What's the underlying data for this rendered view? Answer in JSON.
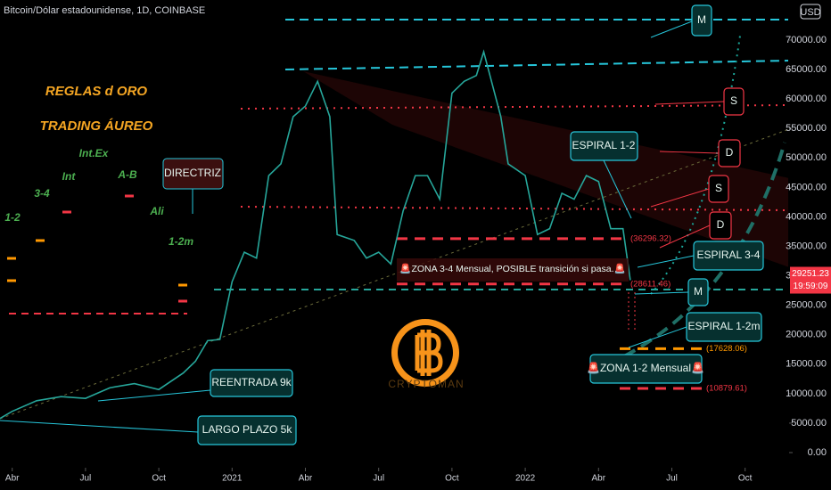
{
  "chart_data": {
    "type": "line",
    "title": "Bitcoin/Dólar estadounidense, 1D, COINBASE",
    "currency": "USD",
    "x": [
      2.5,
      3,
      4,
      5,
      6,
      7,
      8,
      9,
      10,
      10.5,
      11,
      11.5,
      12,
      12.5,
      13,
      13.5,
      14,
      14.5,
      15,
      15.5,
      16,
      16.3,
      17,
      17.5,
      18,
      18.5,
      19,
      19.5,
      20,
      20.5,
      21,
      21.5,
      22,
      22.3,
      23,
      23.3,
      24,
      24.5,
      25,
      25.5,
      26,
      26.5,
      27,
      27.5,
      28,
      28.3
    ],
    "series": [
      {
        "name": "BTCUSD",
        "color": "#26a69a",
        "values": [
          5800,
          7000,
          8800,
          9500,
          9200,
          11000,
          11700,
          10700,
          13500,
          15500,
          19000,
          19200,
          29000,
          34000,
          33000,
          47000,
          49000,
          57000,
          58800,
          63000,
          57000,
          37000,
          36000,
          33000,
          34000,
          32000,
          41000,
          47000,
          47000,
          43000,
          61000,
          63000,
          64000,
          68000,
          57000,
          49000,
          47000,
          37000,
          38000,
          44000,
          43000,
          47000,
          46000,
          38000,
          38000,
          29251.23
        ]
      }
    ],
    "countdown": "19:59:09",
    "xlim": [
      2.5,
      34.8
    ],
    "xticks": [
      {
        "value": 3,
        "label": "Abr"
      },
      {
        "value": 6,
        "label": "Jul"
      },
      {
        "value": 9,
        "label": "Oct"
      },
      {
        "value": 12,
        "label": "2021"
      },
      {
        "value": 15,
        "label": "Abr"
      },
      {
        "value": 18,
        "label": "Jul"
      },
      {
        "value": 21,
        "label": "Oct"
      },
      {
        "value": 24,
        "label": "2022"
      },
      {
        "value": 27,
        "label": "Abr"
      },
      {
        "value": 30,
        "label": "Jul"
      },
      {
        "value": 33,
        "label": "Oct"
      }
    ],
    "ylim": [
      -2570,
      76800
    ],
    "yticks": [
      {
        "value": 0,
        "label": "0.00"
      },
      {
        "value": 5000,
        "label": "5000.00"
      },
      {
        "value": 10000,
        "label": "10000.00"
      },
      {
        "value": 15000,
        "label": "15000.00"
      },
      {
        "value": 20000,
        "label": "20000.00"
      },
      {
        "value": 25000,
        "label": "25000.00"
      },
      {
        "value": 30000,
        "label": "30000.00"
      },
      {
        "value": 35000,
        "label": "35000.00"
      },
      {
        "value": 40000,
        "label": "40000.00"
      },
      {
        "value": 45000,
        "label": "45000.00"
      },
      {
        "value": 50000,
        "label": "50000.00"
      },
      {
        "value": 55000,
        "label": "55000.00"
      },
      {
        "value": 60000,
        "label": "60000.00"
      },
      {
        "value": 65000,
        "label": "65000.00"
      },
      {
        "value": 70000,
        "label": "70000.00"
      }
    ],
    "levels": [
      {
        "value": 36296.32,
        "label": "(36296.32)",
        "color": "#f23645"
      },
      {
        "value": 28611.46,
        "label": "(28611.46)",
        "color": "#f23645"
      },
      {
        "value": 17628.06,
        "label": "(17628.06)",
        "color": "#ff9800"
      },
      {
        "value": 10879.61,
        "label": "(10879.61)",
        "color": "#f23645"
      }
    ],
    "annotations": [
      "REGLAS d ORO",
      "TRADING ÁUREO",
      "Int.Ex",
      "3-4",
      "Int",
      "A-B",
      "1-2",
      "Ali",
      "1-2m",
      "DIRECTRIZ",
      "ESPIRAL 1-2",
      "S",
      "D",
      "S",
      "D",
      "ESPIRAL 3-4",
      "M",
      "M",
      "ESPIRAL 1-2m",
      "🚨ZONA 3-4 Mensual, POSIBLE transición si pasa.🚨",
      "🚨ZONA 1-2 Mensual🚨",
      "REENTRADA 9k",
      "LARGO PLAZO 5k",
      "CRYPTOMAN"
    ]
  }
}
